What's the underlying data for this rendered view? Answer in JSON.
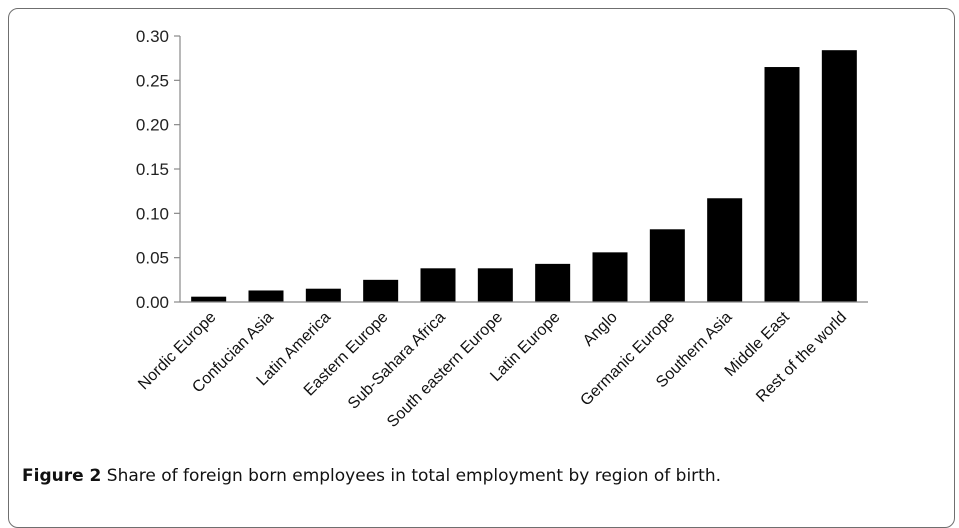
{
  "caption": {
    "figure_label": "Figure 2",
    "text": "Share of foreign born employees in total employment by region of birth."
  },
  "chart_data": {
    "type": "bar",
    "title": "",
    "xlabel": "",
    "ylabel": "",
    "ylim": [
      0,
      0.3
    ],
    "yticks": [
      "0.00",
      "0.05",
      "0.10",
      "0.15",
      "0.20",
      "0.25",
      "0.30"
    ],
    "categories": [
      "Nordic Europe",
      "Confucian Asia",
      "Latin America",
      "Eastern Europe",
      "Sub-Sahara Africa",
      "South eastern Europe",
      "Latin Europe",
      "Anglo",
      "Germanic Europe",
      "Southern Asia",
      "Middle East",
      "Rest of the world"
    ],
    "values": [
      0.006,
      0.013,
      0.015,
      0.025,
      0.038,
      0.038,
      0.043,
      0.056,
      0.082,
      0.117,
      0.265,
      0.284
    ],
    "bar_color": "#000000",
    "grid": false,
    "legend": "none"
  }
}
